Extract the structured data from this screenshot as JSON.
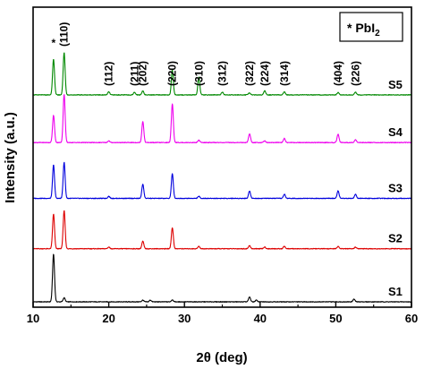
{
  "chart_data": {
    "type": "line",
    "title": "",
    "xlabel": "2θ (deg)",
    "ylabel": "Intensity (a.u.)",
    "xlim": [
      10,
      60
    ],
    "xticks": [
      10,
      20,
      30,
      40,
      50,
      60
    ],
    "legend": {
      "marker": "*",
      "text": "PbI",
      "subscript": "2",
      "position": "top-right"
    },
    "pbi2_marker": {
      "symbol": "*",
      "x": 12.7
    },
    "peak_labels": [
      {
        "text": "(110)",
        "x": 14.1
      },
      {
        "text": "(112)",
        "x": 20.0
      },
      {
        "text": "(211)",
        "x": 23.4
      },
      {
        "text": "(202)",
        "x": 24.5
      },
      {
        "text": "(220)",
        "x": 28.4
      },
      {
        "text": "(310)",
        "x": 31.9
      },
      {
        "text": "(312)",
        "x": 35.0
      },
      {
        "text": "(322)",
        "x": 38.6
      },
      {
        "text": "(224)",
        "x": 40.6
      },
      {
        "text": "(314)",
        "x": 43.2
      },
      {
        "text": "(404)",
        "x": 50.3
      },
      {
        "text": "(226)",
        "x": 52.6
      }
    ],
    "series": [
      {
        "name": "S1",
        "color": "#000000",
        "base": 0.0,
        "peaks": [
          [
            12.7,
            7.0
          ],
          [
            14.1,
            0.6
          ],
          [
            24.5,
            0.25
          ],
          [
            25.5,
            0.25
          ],
          [
            28.4,
            0.3
          ],
          [
            38.6,
            0.7
          ],
          [
            39.5,
            0.25
          ],
          [
            52.4,
            0.4
          ]
        ]
      },
      {
        "name": "S2",
        "color": "#dd0000",
        "base": 7.8,
        "peaks": [
          [
            12.7,
            5.1
          ],
          [
            14.1,
            5.6
          ],
          [
            20.0,
            0.25
          ],
          [
            24.5,
            1.1
          ],
          [
            28.4,
            3.1
          ],
          [
            31.9,
            0.35
          ],
          [
            38.6,
            0.45
          ],
          [
            40.6,
            0.25
          ],
          [
            43.2,
            0.35
          ],
          [
            50.3,
            0.35
          ],
          [
            52.6,
            0.25
          ]
        ]
      },
      {
        "name": "S3",
        "color": "#0000dd",
        "base": 15.2,
        "peaks": [
          [
            12.7,
            4.9
          ],
          [
            14.1,
            5.3
          ],
          [
            20.0,
            0.3
          ],
          [
            24.5,
            2.1
          ],
          [
            28.4,
            3.6
          ],
          [
            31.9,
            0.3
          ],
          [
            38.6,
            1.1
          ],
          [
            43.2,
            0.6
          ],
          [
            50.3,
            1.1
          ],
          [
            52.6,
            0.6
          ]
        ]
      },
      {
        "name": "S4",
        "color": "#ee00ee",
        "base": 23.4,
        "peaks": [
          [
            12.7,
            4.0
          ],
          [
            14.1,
            7.1
          ],
          [
            20.0,
            0.25
          ],
          [
            24.5,
            3.1
          ],
          [
            28.4,
            5.7
          ],
          [
            31.9,
            0.35
          ],
          [
            38.6,
            1.3
          ],
          [
            40.6,
            0.25
          ],
          [
            43.2,
            0.6
          ],
          [
            50.3,
            1.2
          ],
          [
            52.6,
            0.4
          ]
        ]
      },
      {
        "name": "S5",
        "color": "#008800",
        "base": 30.4,
        "peaks": [
          [
            12.7,
            5.2
          ],
          [
            14.1,
            6.2
          ],
          [
            20.0,
            0.45
          ],
          [
            23.4,
            0.4
          ],
          [
            24.5,
            0.6
          ],
          [
            28.4,
            3.6
          ],
          [
            31.9,
            2.6
          ],
          [
            35.0,
            0.4
          ],
          [
            38.6,
            0.3
          ],
          [
            40.6,
            0.6
          ],
          [
            43.2,
            0.45
          ],
          [
            50.3,
            0.35
          ],
          [
            52.6,
            0.4
          ]
        ]
      }
    ]
  }
}
